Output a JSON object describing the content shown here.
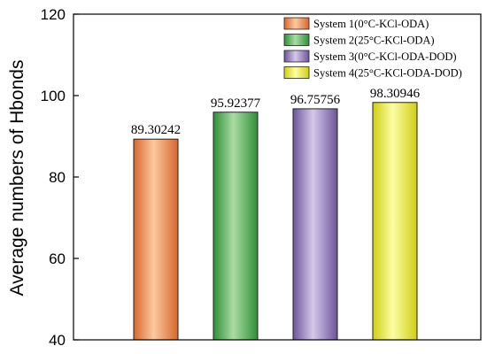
{
  "chart_data": {
    "type": "bar",
    "title": "",
    "xlabel": "",
    "ylabel": "Average numbers of Hbonds",
    "ylim": [
      40,
      120
    ],
    "yticks": [
      40,
      60,
      80,
      100,
      120
    ],
    "grid": false,
    "legend_position": "top-right",
    "series": [
      {
        "name": "System 1(0°C-KCl-ODA)",
        "value": 89.30242,
        "label": "89.30242",
        "color": "#f5a06a"
      },
      {
        "name": "System 2(25°C-KCl-ODA)",
        "value": 95.92377,
        "label": "95.92377",
        "color": "#5fb35f"
      },
      {
        "name": "System 3(0°C-KCl-ODA-DOD)",
        "value": 96.75756,
        "label": "96.75756",
        "color": "#8f79b8"
      },
      {
        "name": "System 4(25°C-KCl-ODA-DOD)",
        "value": 98.30946,
        "label": "98.30946",
        "color": "#eaea3c"
      }
    ]
  }
}
